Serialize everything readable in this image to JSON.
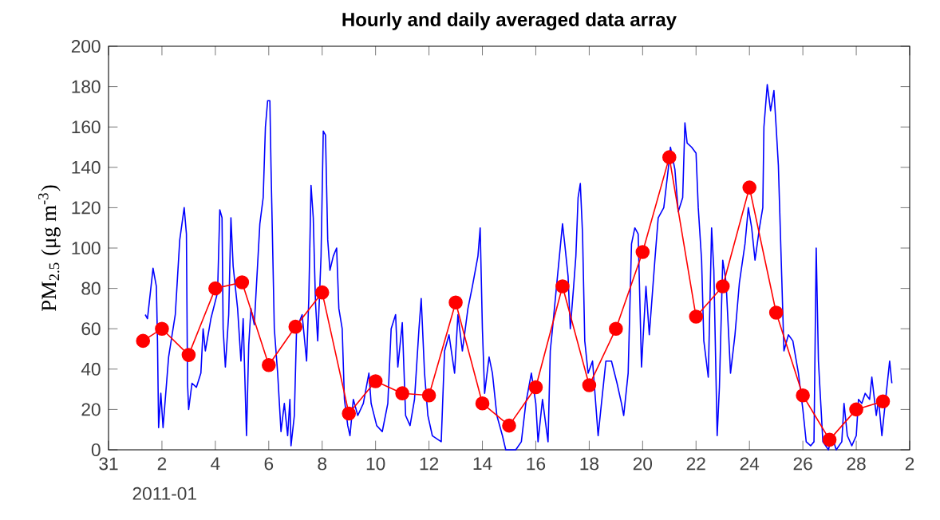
{
  "chart_data": {
    "type": "line",
    "title": "Hourly and daily averaged data array",
    "ylabel": "PM$_{2.5}$ (μg m$^{-3}$)",
    "xlim": [
      "2010-12-31",
      "2011-01-30"
    ],
    "xticks": [
      {
        "value": "2010-12-31",
        "label": "31"
      },
      {
        "value": "2011-01-02",
        "label": "2"
      },
      {
        "value": "2011-01-04",
        "label": "4"
      },
      {
        "value": "2011-01-06",
        "label": "6"
      },
      {
        "value": "2011-01-08",
        "label": "8"
      },
      {
        "value": "2011-01-10",
        "label": "10"
      },
      {
        "value": "2011-01-12",
        "label": "12"
      },
      {
        "value": "2011-01-14",
        "label": "14"
      },
      {
        "value": "2011-01-16",
        "label": "16"
      },
      {
        "value": "2011-01-18",
        "label": "18"
      },
      {
        "value": "2011-01-20",
        "label": "20"
      },
      {
        "value": "2011-01-22",
        "label": "22"
      },
      {
        "value": "2011-01-24",
        "label": "24"
      },
      {
        "value": "2011-01-26",
        "label": "26"
      },
      {
        "value": "2011-01-28",
        "label": "28"
      },
      {
        "value": "2011-01-30",
        "label": "2"
      }
    ],
    "ylim": [
      0,
      200
    ],
    "yticks": [
      0,
      20,
      40,
      60,
      80,
      100,
      120,
      140,
      160,
      180,
      200
    ],
    "annotations": [
      "2011-01"
    ],
    "series": [
      {
        "color": "#0000ff",
        "marker": "none",
        "x": [
          "2011-01-01T09:00",
          "2011-01-01T11:00",
          "2011-01-01T16:00",
          "2011-01-01T19:00",
          "2011-01-01T20:00",
          "2011-01-01T21:00",
          "2011-01-01T23:00",
          "2011-01-02T01:00",
          "2011-01-02T03:00",
          "2011-01-02T06:00",
          "2011-01-02T12:00",
          "2011-01-02T16:00",
          "2011-01-02T20:00",
          "2011-01-02T22:00",
          "2011-01-02T23:00",
          "2011-01-03T00:00",
          "2011-01-03T03:00",
          "2011-01-03T07:00",
          "2011-01-03T11:00",
          "2011-01-03T13:00",
          "2011-01-03T15:00",
          "2011-01-03T20:00",
          "2011-01-04T02:00",
          "2011-01-04T04:00",
          "2011-01-04T06:00",
          "2011-01-04T07:00",
          "2011-01-04T09:00",
          "2011-01-04T12:00",
          "2011-01-04T14:00",
          "2011-01-04T16:00",
          "2011-01-04T20:00",
          "2011-01-04T23:00",
          "2011-01-05T01:00",
          "2011-01-05T04:00",
          "2011-01-05T06:00",
          "2011-01-05T08:00",
          "2011-01-05T11:00",
          "2011-01-05T16:00",
          "2011-01-05T19:00",
          "2011-01-05T21:00",
          "2011-01-05T23:00",
          "2011-01-06T01:00",
          "2011-01-06T02:00",
          "2011-01-06T05:00",
          "2011-01-06T08:00",
          "2011-01-06T11:00",
          "2011-01-06T14:00",
          "2011-01-06T17:00",
          "2011-01-06T19:00",
          "2011-01-06T20:00",
          "2011-01-06T23:00",
          "2011-01-07T01:00",
          "2011-01-07T06:00",
          "2011-01-07T10:00",
          "2011-01-07T12:00",
          "2011-01-07T14:00",
          "2011-01-07T16:00",
          "2011-01-07T18:00",
          "2011-01-07T20:00",
          "2011-01-07T23:00",
          "2011-01-08T01:00",
          "2011-01-08T03:00",
          "2011-01-08T05:00",
          "2011-01-08T07:00",
          "2011-01-08T10:00",
          "2011-01-08T13:00",
          "2011-01-08T15:00",
          "2011-01-08T18:00",
          "2011-01-08T20:00",
          "2011-01-08T23:00",
          "2011-01-09T01:00",
          "2011-01-09T04:00",
          "2011-01-09T08:00",
          "2011-01-09T13:00",
          "2011-01-09T18:00",
          "2011-01-09T20:00",
          "2011-01-10T01:00",
          "2011-01-10T06:00",
          "2011-01-10T11:00",
          "2011-01-10T14:00",
          "2011-01-10T18:00",
          "2011-01-10T20:00",
          "2011-01-11T00:00",
          "2011-01-11T03:00",
          "2011-01-11T07:00",
          "2011-01-11T11:00",
          "2011-01-11T15:00",
          "2011-01-11T17:00",
          "2011-01-11T20:00",
          "2011-01-11T23:00",
          "2011-01-12T03:00",
          "2011-01-12T11:00",
          "2011-01-12T14:00",
          "2011-01-12T18:00",
          "2011-01-12T23:00",
          "2011-01-13T02:00",
          "2011-01-13T06:00",
          "2011-01-13T11:00",
          "2011-01-13T15:00",
          "2011-01-13T20:00",
          "2011-01-13T22:00",
          "2011-01-14T00:00",
          "2011-01-14T02:00",
          "2011-01-14T06:00",
          "2011-01-14T09:00",
          "2011-01-14T13:00",
          "2011-01-14T18:00",
          "2011-01-14T21:00",
          "2011-01-15T06:00",
          "2011-01-15T11:00",
          "2011-01-15T15:00",
          "2011-01-15T20:00",
          "2011-01-16T00:00",
          "2011-01-16T02:00",
          "2011-01-16T06:00",
          "2011-01-16T11:00",
          "2011-01-16T13:00",
          "2011-01-16T15:00",
          "2011-01-16T20:00",
          "2011-01-17T00:00",
          "2011-01-17T02:00",
          "2011-01-17T05:00",
          "2011-01-17T07:00",
          "2011-01-17T10:00",
          "2011-01-17T12:00",
          "2011-01-17T14:00",
          "2011-01-17T16:00",
          "2011-01-17T18:00",
          "2011-01-17T20:00",
          "2011-01-17T23:00",
          "2011-01-18T03:00",
          "2011-01-18T08:00",
          "2011-01-18T11:00",
          "2011-01-18T15:00",
          "2011-01-18T20:00",
          "2011-01-19T01:00",
          "2011-01-19T05:00",
          "2011-01-19T07:00",
          "2011-01-19T11:00",
          "2011-01-19T14:00",
          "2011-01-19T17:00",
          "2011-01-19T20:00",
          "2011-01-19T23:00",
          "2011-01-20T03:00",
          "2011-01-20T06:00",
          "2011-01-20T11:00",
          "2011-01-20T14:00",
          "2011-01-20T19:00",
          "2011-01-20T23:00",
          "2011-01-21T01:00",
          "2011-01-21T05:00",
          "2011-01-21T08:00",
          "2011-01-21T12:00",
          "2011-01-21T14:00",
          "2011-01-21T16:00",
          "2011-01-21T20:00",
          "2011-01-22T00:00",
          "2011-01-22T02:00",
          "2011-01-22T05:00",
          "2011-01-22T07:00",
          "2011-01-22T11:00",
          "2011-01-22T14:00",
          "2011-01-22T16:00",
          "2011-01-22T19:00",
          "2011-01-22T21:00",
          "2011-01-23T00:00",
          "2011-01-23T03:00",
          "2011-01-23T07:00",
          "2011-01-23T11:00",
          "2011-01-23T15:00",
          "2011-01-23T20:00",
          "2011-01-23T23:00",
          "2011-01-24T02:00",
          "2011-01-24T05:00",
          "2011-01-24T09:00",
          "2011-01-24T12:00",
          "2011-01-24T13:00",
          "2011-01-24T16:00",
          "2011-01-24T19:00",
          "2011-01-24T22:00",
          "2011-01-25T00:00",
          "2011-01-25T02:00",
          "2011-01-25T05:00",
          "2011-01-25T07:00",
          "2011-01-25T11:00",
          "2011-01-25T15:00",
          "2011-01-25T20:00",
          "2011-01-26T00:00",
          "2011-01-26T03:00",
          "2011-01-26T07:00",
          "2011-01-26T10:00",
          "2011-01-26T12:00",
          "2011-01-26T14:00",
          "2011-01-26T18:00",
          "2011-01-26T23:00",
          "2011-01-27T02:00",
          "2011-01-27T06:00",
          "2011-01-27T11:00",
          "2011-01-27T13:00",
          "2011-01-27T16:00",
          "2011-01-27T20:00",
          "2011-01-28T00:00",
          "2011-01-28T02:00",
          "2011-01-28T05:00",
          "2011-01-28T08:00",
          "2011-01-28T12:00",
          "2011-01-28T14:00",
          "2011-01-28T18:00",
          "2011-01-28T20:00",
          "2011-01-28T23:00",
          "2011-01-29T02:00",
          "2011-01-29T06:00",
          "2011-01-29T08:00"
        ],
        "values": [
          67,
          65,
          90,
          81,
          54,
          11,
          28,
          11,
          25,
          46,
          67,
          104,
          120,
          107,
          33,
          20,
          33,
          31,
          38,
          60,
          49,
          65,
          78,
          119,
          115,
          60,
          41,
          67,
          115,
          91,
          70,
          44,
          65,
          7,
          52,
          70,
          62,
          112,
          125,
          160,
          173,
          173,
          141,
          60,
          38,
          9,
          23,
          7,
          25,
          2,
          17,
          60,
          67,
          44,
          75,
          131,
          115,
          73,
          54,
          96,
          158,
          156,
          104,
          89,
          96,
          100,
          70,
          60,
          25,
          12,
          7,
          25,
          17,
          23,
          38,
          23,
          12,
          9,
          23,
          60,
          67,
          41,
          63,
          17,
          12,
          25,
          60,
          75,
          38,
          17,
          7,
          4,
          49,
          57,
          38,
          67,
          49,
          70,
          81,
          96,
          110,
          60,
          28,
          46,
          38,
          17,
          7,
          0,
          0,
          4,
          23,
          38,
          23,
          4,
          25,
          4,
          49,
          60,
          89,
          112,
          102,
          86,
          60,
          81,
          96,
          125,
          132,
          107,
          54,
          38,
          44,
          7,
          23,
          44,
          44,
          33,
          23,
          17,
          38,
          102,
          110,
          107,
          41,
          81,
          57,
          94,
          115,
          120,
          139,
          150,
          139,
          118,
          125,
          162,
          152,
          150,
          147,
          120,
          94,
          54,
          36,
          110,
          89,
          7,
          31,
          94,
          83,
          38,
          57,
          83,
          102,
          120,
          110,
          94,
          110,
          120,
          160,
          181,
          168,
          178,
          160,
          141,
          86,
          49,
          57,
          54,
          38,
          20,
          4,
          2,
          4,
          100,
          44,
          4,
          0,
          7,
          0,
          4,
          23,
          7,
          2,
          7,
          25,
          23,
          28,
          25,
          36,
          17,
          25,
          7,
          23,
          44,
          33
        ]
      },
      {
        "color": "#ff0000",
        "marker": "circle",
        "x": [
          "2011-01-01T07:00",
          "2011-01-02",
          "2011-01-03",
          "2011-01-04",
          "2011-01-05",
          "2011-01-06",
          "2011-01-07",
          "2011-01-08",
          "2011-01-09",
          "2011-01-10",
          "2011-01-11",
          "2011-01-12",
          "2011-01-13",
          "2011-01-14",
          "2011-01-15",
          "2011-01-16",
          "2011-01-17",
          "2011-01-18",
          "2011-01-19",
          "2011-01-20",
          "2011-01-21",
          "2011-01-22",
          "2011-01-23",
          "2011-01-24",
          "2011-01-25",
          "2011-01-26",
          "2011-01-27",
          "2011-01-28",
          "2011-01-29"
        ],
        "values": [
          54,
          60,
          47,
          80,
          83,
          42,
          61,
          78,
          18,
          34,
          28,
          27,
          73,
          23,
          12,
          31,
          81,
          32,
          60,
          98,
          145,
          66,
          81,
          130,
          68,
          27,
          5,
          20,
          24
        ]
      }
    ]
  }
}
